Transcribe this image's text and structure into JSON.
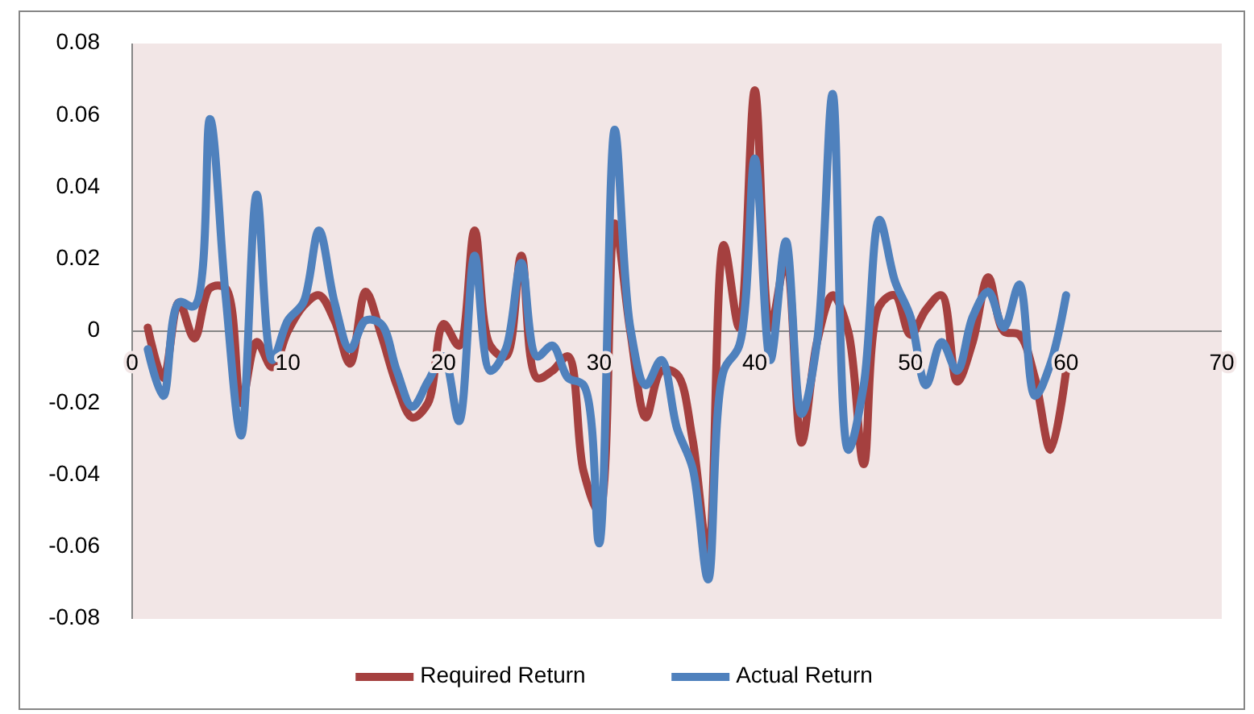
{
  "chart_data": {
    "type": "line",
    "x": [
      1,
      2,
      3,
      4,
      5,
      6,
      7,
      8,
      9,
      10,
      11,
      12,
      13,
      14,
      15,
      16,
      17,
      18,
      19,
      20,
      21,
      22,
      23,
      24,
      25,
      26,
      27,
      28,
      29,
      30,
      31,
      32,
      33,
      34,
      35,
      36,
      37,
      38,
      39,
      40,
      41,
      42,
      43,
      44,
      45,
      46,
      47,
      48,
      49,
      50,
      51,
      52,
      53,
      54,
      55,
      56,
      57,
      58,
      59,
      60
    ],
    "series": [
      {
        "name": "Required Return",
        "color": "#a5403f",
        "values": [
          0.001,
          -0.013,
          0.008,
          -0.002,
          0.012,
          0.012,
          -0.02,
          -0.003,
          -0.01,
          0.0,
          0.007,
          0.01,
          0.003,
          -0.009,
          0.011,
          -0.001,
          -0.015,
          -0.024,
          -0.02,
          0.002,
          -0.004,
          0.028,
          -0.004,
          -0.007,
          0.021,
          -0.013,
          -0.011,
          -0.007,
          -0.039,
          -0.05,
          0.03,
          0.0,
          -0.024,
          -0.011,
          -0.012,
          -0.03,
          -0.062,
          0.024,
          0.001,
          0.067,
          0.001,
          0.02,
          -0.031,
          -0.003,
          0.01,
          0.0,
          -0.037,
          0.007,
          0.01,
          -0.001,
          0.006,
          0.01,
          -0.014,
          -0.003,
          0.015,
          0.0,
          -0.001,
          -0.013,
          -0.033,
          -0.011
        ]
      },
      {
        "name": "Actual Return",
        "color": "#4f81bd",
        "values": [
          -0.005,
          -0.018,
          0.008,
          0.007,
          0.059,
          0.01,
          -0.029,
          0.038,
          -0.008,
          0.003,
          0.008,
          0.028,
          0.008,
          -0.005,
          0.003,
          0.002,
          -0.011,
          -0.021,
          -0.014,
          -0.007,
          -0.025,
          0.021,
          -0.011,
          -0.005,
          0.019,
          -0.007,
          -0.004,
          -0.013,
          -0.015,
          -0.059,
          0.056,
          0.001,
          -0.015,
          -0.008,
          -0.027,
          -0.038,
          -0.069,
          -0.011,
          -0.004,
          0.048,
          -0.008,
          0.025,
          -0.023,
          -0.003,
          0.066,
          -0.033,
          -0.015,
          0.031,
          0.014,
          0.004,
          -0.015,
          -0.003,
          -0.011,
          0.004,
          0.011,
          0.001,
          0.013,
          -0.018,
          -0.009,
          0.01
        ]
      }
    ],
    "xlim": [
      0,
      70
    ],
    "xticks": [
      0,
      10,
      20,
      30,
      40,
      50,
      60,
      70
    ],
    "ylim": [
      -0.08,
      0.08
    ],
    "yticks": [
      -0.08,
      -0.06,
      -0.04,
      -0.02,
      0,
      0.02,
      0.04,
      0.06,
      0.08
    ],
    "grid": false,
    "legend": "bottom",
    "marker": "none",
    "line_style": "solid"
  }
}
